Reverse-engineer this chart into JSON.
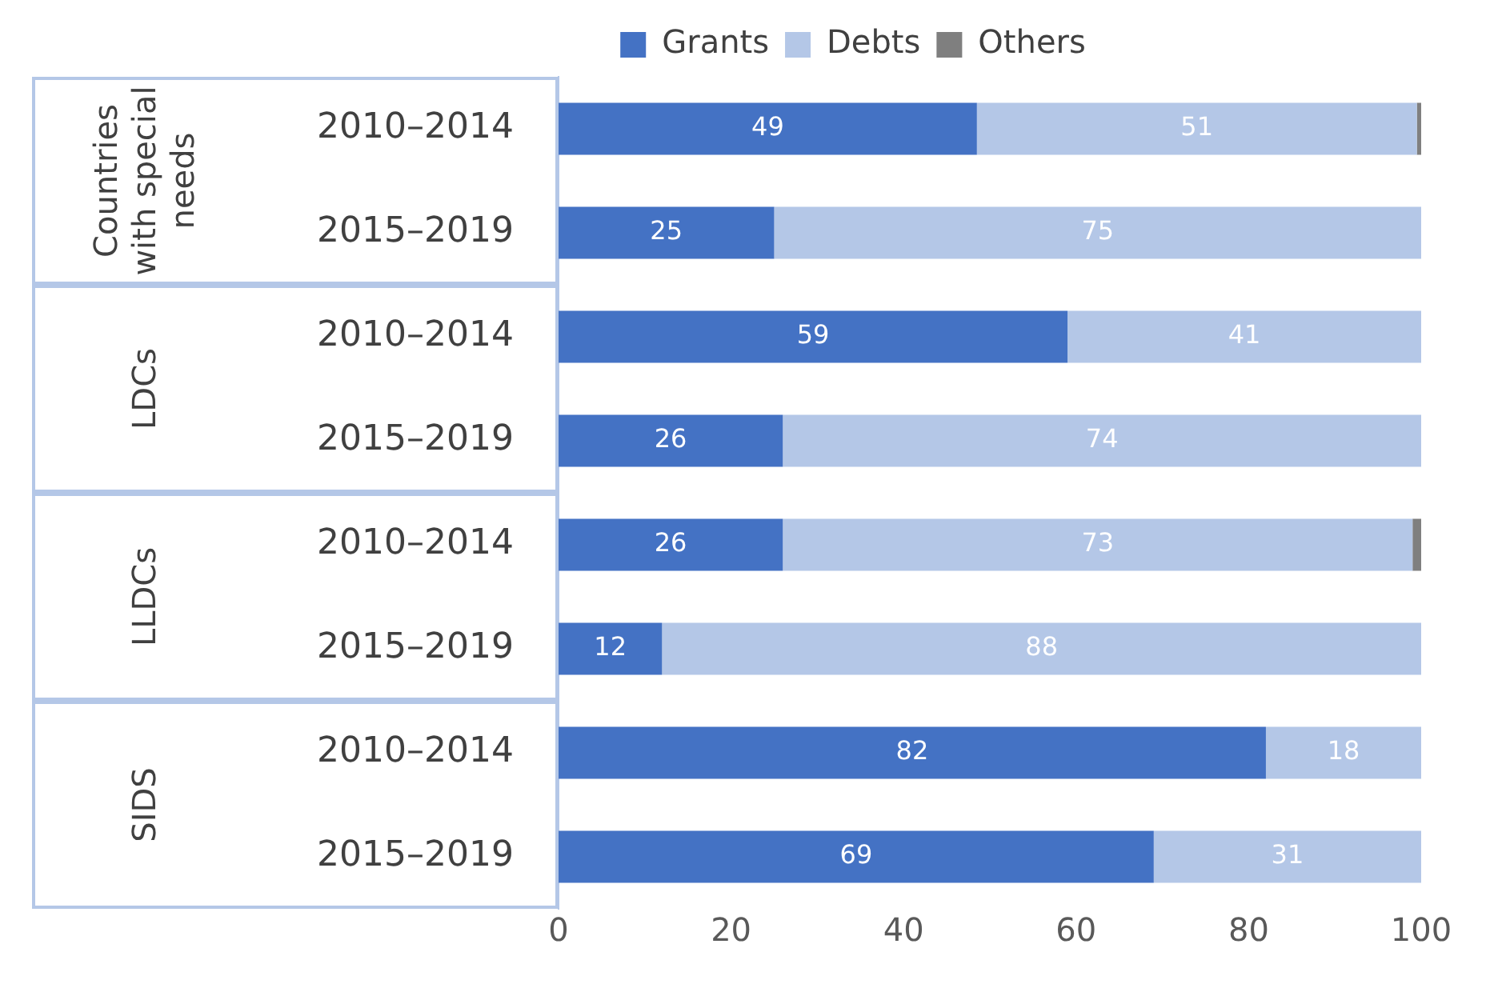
{
  "chart_data": {
    "type": "bar",
    "orientation": "horizontal",
    "stacked": true,
    "categories": [
      "2010–2014",
      "2015–2019",
      "2010–2014",
      "2015–2019",
      "2010–2014",
      "2015–2019",
      "2010–2014",
      "2015–2019"
    ],
    "annotations": [
      "Countries with special needs",
      "LDCs",
      "LLDCs",
      "SIDS"
    ],
    "series": [
      {
        "name": "Grants",
        "color": "#4472c4",
        "values": [
          48.5,
          25,
          59,
          26,
          26,
          12,
          82,
          69
        ],
        "value_labels": [
          "49",
          "25",
          "59",
          "26",
          "26",
          "12",
          "82",
          "69"
        ]
      },
      {
        "name": "Debts",
        "color": "#b4c7e7",
        "values": [
          51,
          75,
          41,
          74,
          73,
          88,
          18,
          31
        ],
        "value_labels": [
          "51",
          "75",
          "41",
          "74",
          "73",
          "88",
          "18",
          "31"
        ]
      },
      {
        "name": "Others",
        "color": "#7f7f7f",
        "values": [
          0.5,
          null,
          null,
          null,
          1,
          null,
          null,
          null
        ]
      }
    ],
    "xlim": [
      0,
      100
    ],
    "xticks": [
      0,
      20,
      40,
      60,
      80,
      100
    ],
    "legend": "top",
    "grid": false
  }
}
